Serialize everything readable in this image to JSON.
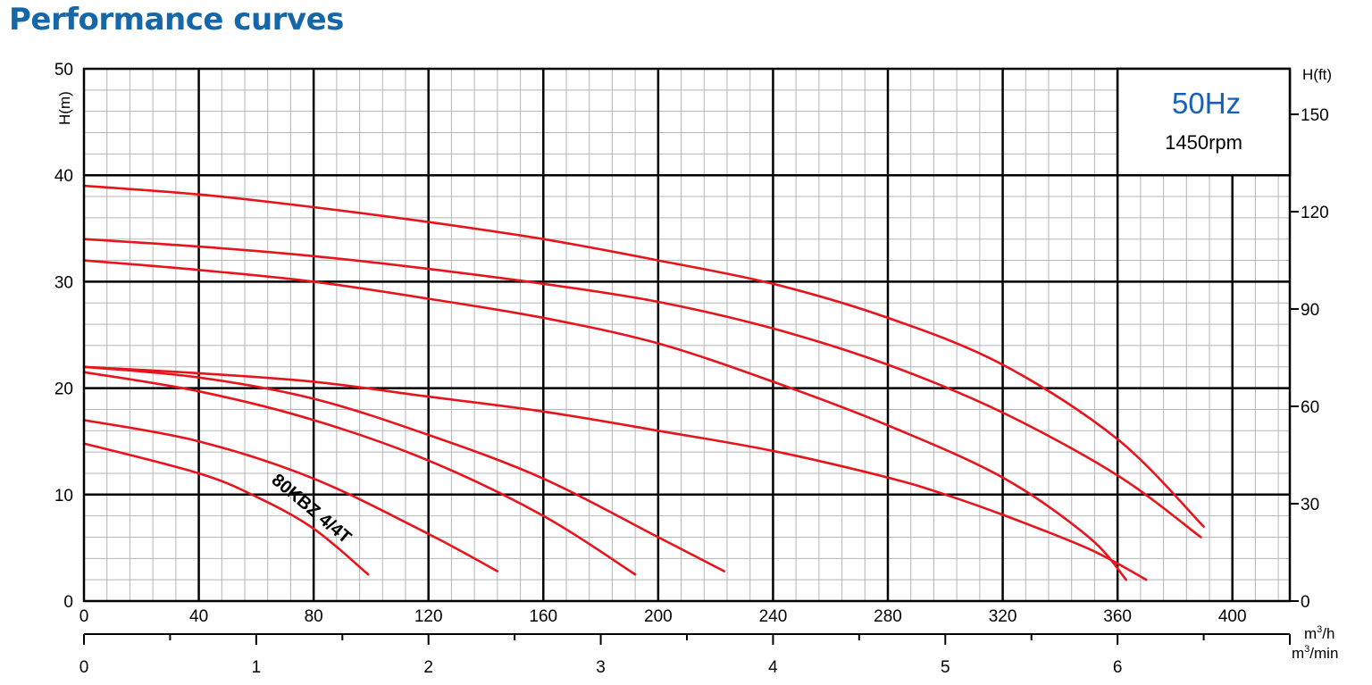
{
  "title": "Performance curves",
  "colors": {
    "title": "#1667a8",
    "curve": "#e8141c",
    "frequency": "#1660b8",
    "grid_minor": "#b5b5b5",
    "grid_major": "#000000"
  },
  "annotations": {
    "frequency": "50Hz",
    "speed": "1450rpm",
    "model": "80KBZ 4/4T"
  },
  "chart_data": {
    "type": "line",
    "x_axis_primary": {
      "label": "m³/h",
      "label_base": "m",
      "label_sup": "3",
      "label_rest": "/h",
      "range": [
        0,
        420
      ],
      "ticks": [
        0,
        40,
        80,
        120,
        160,
        200,
        240,
        280,
        320,
        360,
        400
      ]
    },
    "x_axis_secondary": {
      "label": "m³/min",
      "label_base": "m",
      "label_sup": "3",
      "label_rest": "/min",
      "range": [
        0,
        7
      ],
      "ticks": [
        0,
        1,
        2,
        3,
        4,
        5,
        6
      ]
    },
    "y_axis_left": {
      "label": "H(m)",
      "range": [
        0,
        50
      ],
      "ticks": [
        0,
        10,
        20,
        30,
        40,
        50
      ]
    },
    "y_axis_right": {
      "label": "H(ft)",
      "range": [
        0,
        164
      ],
      "ticks": [
        0,
        30,
        60,
        90,
        120,
        150
      ]
    },
    "grid": true,
    "series": [
      {
        "x": [
          0,
          40,
          80,
          120,
          160,
          200,
          240,
          280,
          320,
          360,
          390
        ],
        "y": [
          39,
          38.2,
          37,
          35.6,
          34,
          32,
          29.8,
          26.6,
          22.2,
          15.2,
          7
        ]
      },
      {
        "x": [
          0,
          40,
          80,
          120,
          160,
          200,
          240,
          280,
          320,
          360,
          389
        ],
        "y": [
          34,
          33.3,
          32.4,
          31.2,
          29.8,
          28.1,
          25.6,
          22.2,
          17.7,
          11.8,
          6
        ]
      },
      {
        "x": [
          0,
          40,
          80,
          120,
          160,
          200,
          240,
          280,
          320,
          350,
          363
        ],
        "y": [
          32,
          31.1,
          30,
          28.4,
          26.6,
          24.2,
          20.6,
          16.5,
          11.6,
          6,
          2
        ]
      },
      {
        "x": [
          0,
          40,
          80,
          120,
          160,
          200,
          240,
          280,
          300,
          320,
          350,
          370
        ],
        "y": [
          22,
          21.4,
          20.6,
          19.2,
          17.8,
          16,
          14.1,
          11.6,
          10,
          8.1,
          4.9,
          2
        ]
      },
      {
        "x": [
          0,
          40,
          80,
          120,
          160,
          200,
          223
        ],
        "y": [
          22,
          21,
          19,
          15.6,
          11.5,
          6,
          2.8
        ]
      },
      {
        "x": [
          0,
          40,
          80,
          120,
          160,
          192
        ],
        "y": [
          21.5,
          19.7,
          17,
          13.2,
          8,
          2.5
        ]
      },
      {
        "x": [
          0,
          40,
          80,
          120,
          144
        ],
        "y": [
          17,
          15,
          11.5,
          6.3,
          2.8
        ]
      },
      {
        "x": [
          0,
          40,
          60,
          80,
          99
        ],
        "y": [
          14.8,
          12,
          9.8,
          6.8,
          2.5
        ]
      }
    ]
  }
}
